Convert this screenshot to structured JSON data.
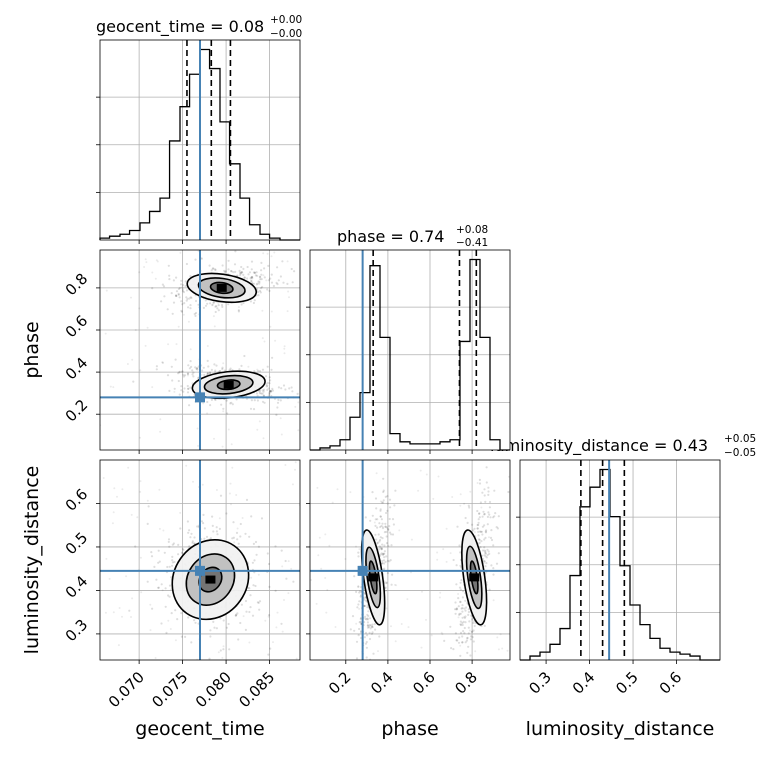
{
  "chart_data": {
    "type": "corner",
    "grid": true,
    "truth_color": "#4682b4",
    "quantiles": [
      0.16,
      0.5,
      0.84
    ],
    "parameters": [
      {
        "name": "geocent_time",
        "title_value": "0.08",
        "title_plus": "+0.00",
        "title_minus": "−0.00",
        "range": [
          0.0655,
          0.0885
        ],
        "ticks": [
          0.07,
          0.075,
          0.08,
          0.085
        ],
        "tick_labels": [
          "0.070",
          "0.075",
          "0.080",
          "0.085"
        ],
        "truth": 0.077,
        "quantile_values": [
          0.0755,
          0.0783,
          0.0805
        ]
      },
      {
        "name": "phase",
        "title_value": "0.74",
        "title_plus": "+0.08",
        "title_minus": "−0.41",
        "range": [
          0.03,
          0.98
        ],
        "ticks": [
          0.2,
          0.4,
          0.6,
          0.8
        ],
        "tick_labels": [
          "0.2",
          "0.4",
          "0.6",
          "0.8"
        ],
        "truth": 0.28,
        "quantile_values": [
          0.33,
          0.74,
          0.82
        ]
      },
      {
        "name": "luminosity_distance",
        "title_value": "0.43",
        "title_plus": "+0.05",
        "title_minus": "−0.05",
        "range": [
          0.24,
          0.7
        ],
        "ticks": [
          0.3,
          0.4,
          0.5,
          0.6
        ],
        "tick_labels": [
          "0.3",
          "0.4",
          "0.5",
          "0.6"
        ],
        "truth": 0.445,
        "quantile_values": [
          0.38,
          0.43,
          0.48
        ]
      }
    ],
    "histograms": [
      {
        "param": "geocent_time",
        "edges": [
          0.0655,
          0.0666,
          0.0678,
          0.0689,
          0.0701,
          0.0712,
          0.0724,
          0.0735,
          0.0747,
          0.0758,
          0.077,
          0.0781,
          0.0793,
          0.0804,
          0.0816,
          0.0827,
          0.0839,
          0.085,
          0.0862,
          0.0873,
          0.0885
        ],
        "counts": [
          0.01,
          0.02,
          0.03,
          0.05,
          0.09,
          0.15,
          0.22,
          0.52,
          0.7,
          0.87,
          1.0,
          0.9,
          0.62,
          0.4,
          0.22,
          0.08,
          0.03,
          0.01,
          0,
          0
        ]
      },
      {
        "param": "phase",
        "edges": [
          0.03,
          0.0775,
          0.125,
          0.1725,
          0.22,
          0.2675,
          0.315,
          0.3625,
          0.41,
          0.4575,
          0.505,
          0.5525,
          0.6,
          0.6475,
          0.695,
          0.7425,
          0.79,
          0.8375,
          0.885,
          0.9325,
          0.98
        ],
        "counts": [
          0.0,
          0.01,
          0.02,
          0.05,
          0.16,
          0.28,
          0.9,
          0.55,
          0.08,
          0.04,
          0.03,
          0.03,
          0.03,
          0.04,
          0.05,
          0.53,
          0.93,
          0.55,
          0.05,
          0.0
        ]
      },
      {
        "param": "luminosity_distance",
        "edges": [
          0.24,
          0.263,
          0.286,
          0.309,
          0.332,
          0.355,
          0.378,
          0.401,
          0.424,
          0.447,
          0.47,
          0.493,
          0.516,
          0.539,
          0.562,
          0.585,
          0.608,
          0.631,
          0.654,
          0.677,
          0.7
        ],
        "counts": [
          0.0,
          0.02,
          0.04,
          0.08,
          0.16,
          0.43,
          0.78,
          0.88,
          0.97,
          0.73,
          0.48,
          0.28,
          0.18,
          0.11,
          0.06,
          0.04,
          0.03,
          0.02,
          0.0,
          0.0
        ]
      }
    ],
    "contours_2d": [
      {
        "x": "geocent_time",
        "y": "phase",
        "components": [
          {
            "cx": 0.0795,
            "cy": 0.8,
            "rx": [
              0.0013,
              0.0027,
              0.004
            ],
            "ry": [
              0.025,
              0.045,
              0.065
            ],
            "angle": -8
          },
          {
            "cx": 0.0803,
            "cy": 0.34,
            "rx": [
              0.0013,
              0.0028,
              0.0042
            ],
            "ry": [
              0.022,
              0.042,
              0.062
            ],
            "angle": 6
          }
        ]
      },
      {
        "x": "geocent_time",
        "y": "luminosity_distance",
        "components": [
          {
            "cx": 0.0782,
            "cy": 0.425,
            "rx": [
              0.0012,
              0.0026,
              0.0042
            ],
            "ry": [
              0.03,
              0.062,
              0.095
            ],
            "angle": -35
          }
        ]
      },
      {
        "x": "phase",
        "y": "luminosity_distance",
        "components": [
          {
            "cx": 0.33,
            "cy": 0.43,
            "rx": [
              0.014,
              0.028,
              0.045
            ],
            "ry": [
              0.038,
              0.07,
              0.11
            ],
            "angle": 8
          },
          {
            "cx": 0.81,
            "cy": 0.43,
            "rx": [
              0.014,
              0.03,
              0.05
            ],
            "ry": [
              0.038,
              0.072,
              0.11
            ],
            "angle": 8
          }
        ]
      }
    ]
  }
}
